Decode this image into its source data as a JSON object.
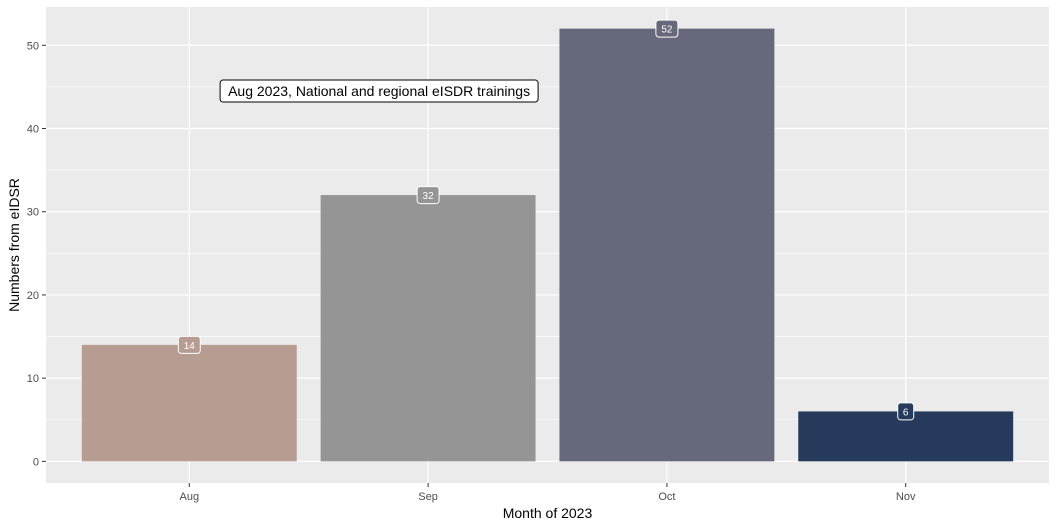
{
  "chart_data": {
    "type": "bar",
    "categories": [
      "Aug",
      "Sep",
      "Oct",
      "Nov"
    ],
    "values": [
      14,
      32,
      52,
      6
    ],
    "bar_colors": [
      "#b79c92",
      "#959595",
      "#66687b",
      "#263a5b"
    ],
    "xlabel": "Month of 2023",
    "ylabel": "Numbers from eIDSR",
    "ylim": [
      -2.6,
      54.6
    ],
    "yticks": [
      0,
      10,
      20,
      30,
      40,
      50
    ],
    "grid": true,
    "legend": "none",
    "annotation": {
      "text": "Aug 2023, National and regional eISDR trainings",
      "x_category": "Sep",
      "y": 44.5
    },
    "panel_background": "#ebebeb",
    "grid_color": "#ffffff"
  }
}
